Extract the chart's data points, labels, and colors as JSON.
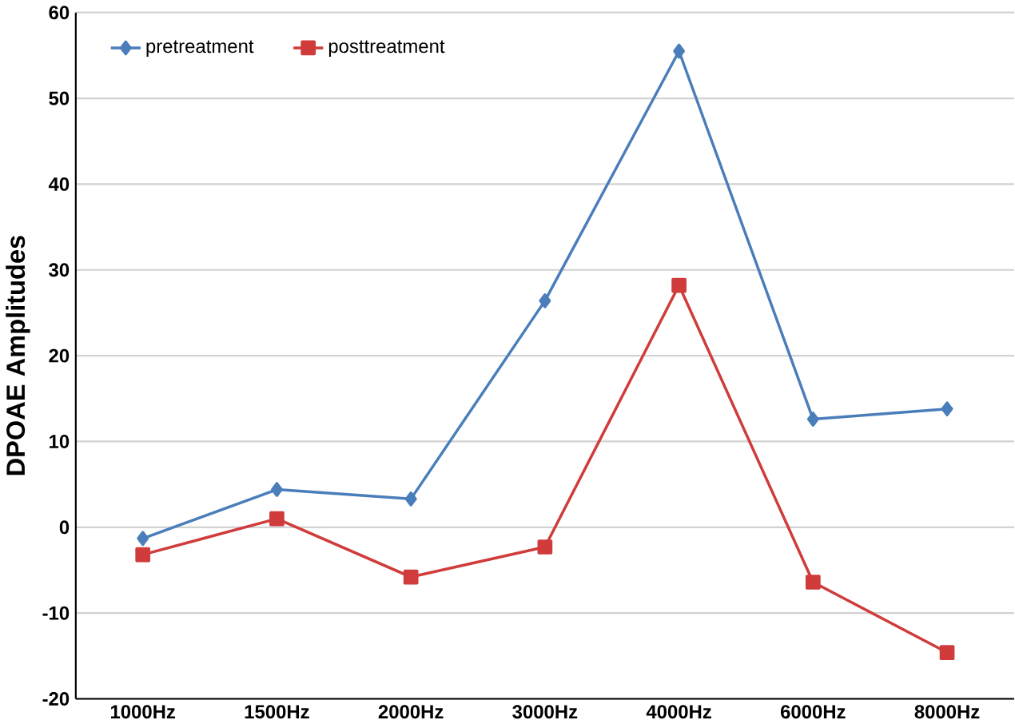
{
  "chart_data": {
    "type": "line",
    "ylabel": "DPOAE Amplitudes",
    "categories": [
      "1000Hz",
      "1500Hz",
      "2000Hz",
      "3000Hz",
      "4000Hz",
      "6000Hz",
      "8000Hz"
    ],
    "series": [
      {
        "name": "pretreatment",
        "color": "#4a7ebb",
        "marker": "diamond",
        "values": [
          -1.3,
          4.4,
          3.3,
          26.4,
          55.5,
          12.6,
          13.8
        ]
      },
      {
        "name": "posttreatment",
        "color": "#d03b3b",
        "marker": "square",
        "values": [
          -3.2,
          1.0,
          -5.8,
          -2.3,
          28.2,
          -6.4,
          -14.6
        ]
      }
    ],
    "ylim": [
      -20,
      60
    ],
    "yticks": [
      -20,
      -10,
      0,
      10,
      20,
      30,
      40,
      50,
      60
    ],
    "grid": "y",
    "legend": "top left",
    "line_style": "solid"
  }
}
